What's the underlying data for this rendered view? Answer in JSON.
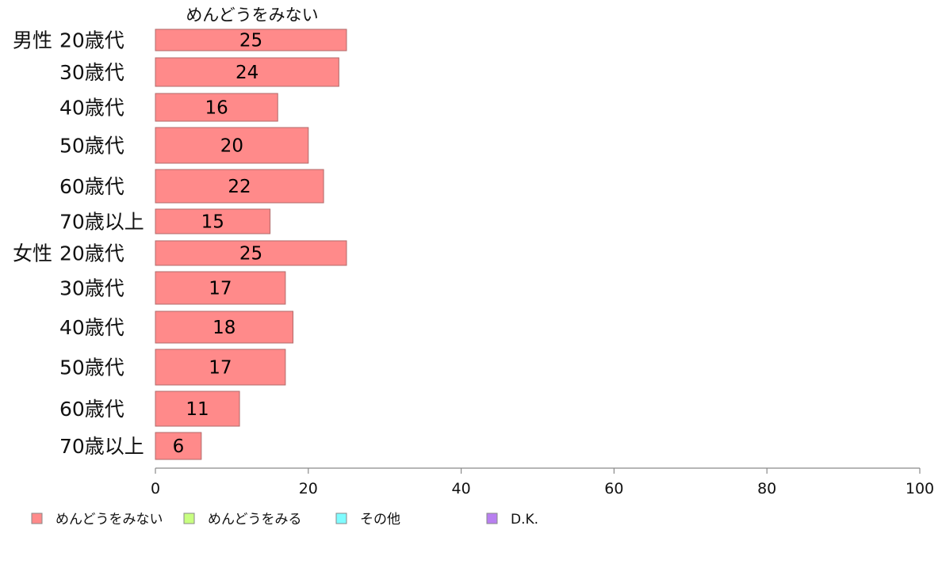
{
  "chart_data": {
    "type": "bar",
    "orientation": "horizontal",
    "title": "めんどうをみない",
    "categories": [
      {
        "group": "男性",
        "age": "20歳代"
      },
      {
        "group": "",
        "age": "30歳代"
      },
      {
        "group": "",
        "age": "40歳代"
      },
      {
        "group": "",
        "age": "50歳代"
      },
      {
        "group": "",
        "age": "60歳代"
      },
      {
        "group": "",
        "age": "70歳以上"
      },
      {
        "group": "女性",
        "age": "20歳代"
      },
      {
        "group": "",
        "age": "30歳代"
      },
      {
        "group": "",
        "age": "40歳代"
      },
      {
        "group": "",
        "age": "50歳代"
      },
      {
        "group": "",
        "age": "60歳代"
      },
      {
        "group": "",
        "age": "70歳以上"
      }
    ],
    "series": [
      {
        "name": "めんどうをみない",
        "color": "#ff8a8a",
        "values": [
          25,
          24,
          16,
          20,
          22,
          15,
          25,
          17,
          18,
          17,
          11,
          6
        ]
      }
    ],
    "xlim": [
      0,
      100
    ],
    "xticks": [
      "0",
      "20",
      "40",
      "60",
      "80",
      "100"
    ],
    "grid": false,
    "legend": {
      "placement": "bottom",
      "entries": [
        {
          "label": "めんどうをみない",
          "color": "#ff8a8a"
        },
        {
          "label": "めんどうをみる",
          "color": "#c8ff80"
        },
        {
          "label": "その他",
          "color": "#7ffcff"
        },
        {
          "label": "D.K.",
          "color": "#b87ff0"
        }
      ]
    }
  }
}
